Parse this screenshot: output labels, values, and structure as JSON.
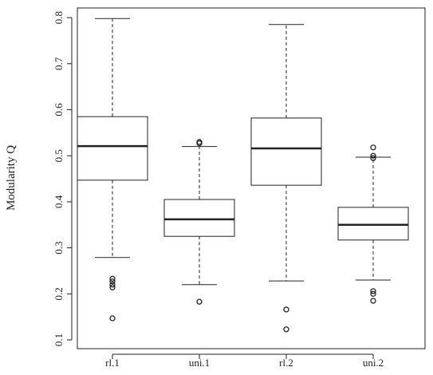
{
  "chart_data": {
    "type": "boxplot",
    "y_label": "Modularity Q",
    "categories": [
      "rl.1",
      "uni.1",
      "rl.2",
      "uni.2"
    ],
    "boxes": [
      {
        "whisker_low": 0.279,
        "q1": 0.447,
        "median": 0.521,
        "q3": 0.585,
        "whisker_high": 0.798,
        "outliers": [
          0.233,
          0.227,
          0.22,
          0.214,
          0.147
        ]
      },
      {
        "whisker_low": 0.22,
        "q1": 0.325,
        "median": 0.362,
        "q3": 0.405,
        "whisker_high": 0.52,
        "outliers": [
          0.53,
          0.527,
          0.183
        ]
      },
      {
        "whisker_low": 0.228,
        "q1": 0.436,
        "median": 0.516,
        "q3": 0.582,
        "whisker_high": 0.785,
        "outliers": [
          0.166,
          0.123
        ]
      },
      {
        "whisker_low": 0.23,
        "q1": 0.317,
        "median": 0.35,
        "q3": 0.388,
        "whisker_high": 0.497,
        "outliers": [
          0.518,
          0.5,
          0.495,
          0.206,
          0.2,
          0.185
        ]
      }
    ],
    "ylim": [
      0.081,
      0.821
    ],
    "yticks": [
      0.1,
      0.2,
      0.3,
      0.4,
      0.5,
      0.6,
      0.7,
      0.8
    ]
  }
}
